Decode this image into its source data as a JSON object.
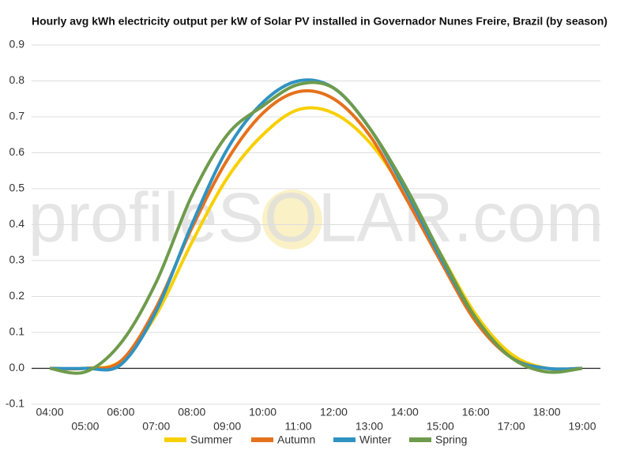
{
  "chart_data": {
    "type": "line",
    "title": "Hourly avg kWh electricity output per kW of Solar PV installed in Governador Nunes Freire, Brazil (by season)",
    "watermark": "profileSOLAR.com",
    "categories": [
      "04:00",
      "05:00",
      "06:00",
      "07:00",
      "08:00",
      "09:00",
      "10:00",
      "11:00",
      "12:00",
      "13:00",
      "14:00",
      "15:00",
      "16:00",
      "17:00",
      "18:00",
      "19:00"
    ],
    "series": [
      {
        "name": "Summer",
        "color": "#f7d000",
        "values": [
          0,
          0,
          0.02,
          0.15,
          0.35,
          0.53,
          0.65,
          0.72,
          0.71,
          0.63,
          0.49,
          0.32,
          0.15,
          0.04,
          0,
          0
        ]
      },
      {
        "name": "Autumn",
        "color": "#e5711d",
        "values": [
          0,
          0,
          0.02,
          0.17,
          0.39,
          0.58,
          0.71,
          0.77,
          0.75,
          0.65,
          0.48,
          0.3,
          0.13,
          0.03,
          0,
          0
        ]
      },
      {
        "name": "Winter",
        "color": "#2f93c2",
        "values": [
          0,
          0,
          0.01,
          0.16,
          0.4,
          0.61,
          0.74,
          0.8,
          0.78,
          0.67,
          0.5,
          0.31,
          0.14,
          0.03,
          0,
          0
        ]
      },
      {
        "name": "Spring",
        "color": "#6e9b4c",
        "values": [
          0,
          -0.01,
          0.07,
          0.24,
          0.48,
          0.65,
          0.73,
          0.79,
          0.78,
          0.67,
          0.51,
          0.32,
          0.14,
          0.03,
          -0.01,
          0
        ]
      }
    ],
    "ylim": [
      -0.1,
      0.9
    ],
    "yticks": [
      -0.1,
      {
        "value": 0,
        "label": "0.0"
      },
      0.1,
      0.2,
      0.3,
      0.4,
      0.5,
      0.6,
      0.7,
      0.8,
      0.9
    ],
    "grid": true
  }
}
